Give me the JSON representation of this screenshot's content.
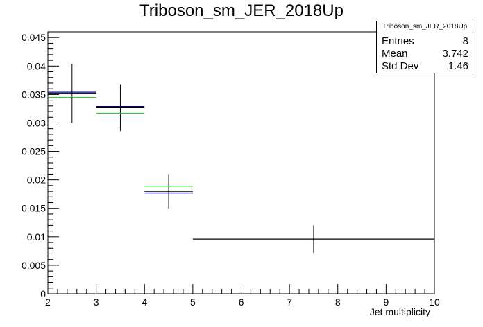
{
  "title": "Triboson_sm_JER_2018Up",
  "stats": {
    "name": "Triboson_sm_JER_2018Up",
    "rows": [
      {
        "key": "Entries",
        "value": "8"
      },
      {
        "key": "Mean",
        "value": "3.742"
      },
      {
        "key": "Std Dev",
        "value": "1.46"
      }
    ]
  },
  "chart_data": {
    "type": "histogram",
    "title": "Triboson_sm_JER_2018Up",
    "xlabel": "Jet multiplicity",
    "ylabel": "",
    "xlim": [
      2,
      10
    ],
    "ylim": [
      0,
      0.046
    ],
    "x_tick_labels": [
      "2",
      "3",
      "4",
      "5",
      "6",
      "7",
      "8",
      "9",
      "10"
    ],
    "y_tick_labels": [
      "0",
      "0.005",
      "0.01",
      "0.015",
      "0.02",
      "0.025",
      "0.03",
      "0.035",
      "0.04",
      "0.045"
    ],
    "series": [
      {
        "color": "#000000",
        "bins": [
          {
            "x_low": 2,
            "x_high": 3,
            "value": 0.0352,
            "error": 0.0052
          },
          {
            "x_low": 3,
            "x_high": 4,
            "value": 0.0327,
            "error": 0.0041
          },
          {
            "x_low": 4,
            "x_high": 5,
            "value": 0.018,
            "error": 0.003
          },
          {
            "x_low": 5,
            "x_high": 10,
            "value": 0.0096,
            "error": 0.0024
          }
        ]
      },
      {
        "color": "#000099",
        "bins": [
          {
            "x_low": 2,
            "x_high": 3,
            "value": 0.0354
          },
          {
            "x_low": 3,
            "x_high": 4,
            "value": 0.0329
          },
          {
            "x_low": 4,
            "x_high": 5,
            "value": 0.0177
          }
        ]
      },
      {
        "color": "#33cc33",
        "bins": [
          {
            "x_low": 2,
            "x_high": 3,
            "value": 0.0345
          },
          {
            "x_low": 3,
            "x_high": 4,
            "value": 0.0317
          },
          {
            "x_low": 4,
            "x_high": 5,
            "value": 0.0189
          }
        ]
      }
    ]
  }
}
